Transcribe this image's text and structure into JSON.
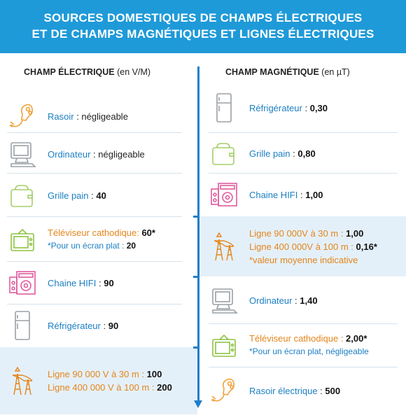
{
  "banner": {
    "line1": "SOURCES DOMESTIQUES DE CHAMPS ÉLECTRIQUES",
    "line2": "ET DE CHAMPS MAGNÉTIQUES ET LIGNES ÉLECTRIQUES"
  },
  "electric": {
    "title": "CHAMP ÉLECTRIQUE",
    "unit": "(en V/M)",
    "items": [
      {
        "icon": "razor-icon",
        "name": "Rasoir",
        "sep": " : ",
        "value": "négligeable",
        "value_bold": false
      },
      {
        "icon": "computer-icon",
        "name": "Ordinateur",
        "sep": " : ",
        "value": "négligeable",
        "value_bold": false
      },
      {
        "icon": "toaster-icon",
        "name": "Grille pain",
        "sep": " : ",
        "value": "40",
        "value_bold": true
      },
      {
        "icon": "tv-icon",
        "name": "Téléviseur cathodique",
        "sep": ": ",
        "value": "60*",
        "value_bold": true,
        "note_text": "*Pour un écran plat : ",
        "note_value": "20"
      },
      {
        "icon": "hifi-icon",
        "name": "Chaine HIFI",
        "sep": " : ",
        "value": "90",
        "value_bold": true
      },
      {
        "icon": "fridge-icon",
        "name": "Réfrigérateur",
        "sep": " : ",
        "value": "90",
        "value_bold": true
      }
    ],
    "lines": {
      "line1_name": "Ligne 90 000 V à 30 m : ",
      "line1_value": "100",
      "line2_name": "Ligne 400 000 V à 100 m : ",
      "line2_value": "200"
    }
  },
  "magnetic": {
    "title": "CHAMP MAGNÉTIQUE",
    "unit": "(en µT)",
    "items": [
      {
        "icon": "fridge-icon",
        "name": "Réfrigérateur",
        "sep": " : ",
        "value": "0,30"
      },
      {
        "icon": "toaster-icon",
        "name": "Grille pain",
        "sep": " : ",
        "value": "0,80"
      },
      {
        "icon": "hifi-icon",
        "name": "Chaine HIFI",
        "sep": " : ",
        "value": "1,00"
      }
    ],
    "lines": {
      "line1_name": "Ligne 90 000V à 30 m : ",
      "line1_value": "1,00",
      "line2_name": "Ligne 400 000V à 100 m : ",
      "line2_value": "0,16*",
      "note": "*valeur moyenne indicative"
    },
    "items2": [
      {
        "icon": "computer-icon",
        "name": "Ordinateur",
        "sep": " : ",
        "value": "1,40"
      },
      {
        "icon": "tv-icon",
        "name": "Téléviseur cathodique",
        "sep": " : ",
        "value": "2,00*",
        "note": "*Pour un écran plat, négligeable"
      },
      {
        "icon": "razor-icon",
        "name": "Rasoir électrique",
        "sep": " : ",
        "value": "500"
      }
    ]
  },
  "colors": {
    "banner": "#1f9ad8",
    "axis": "#1f7fc9",
    "label_blue": "#1c7fc4",
    "label_orange": "#e5851c",
    "highlight": "#e4f0f9",
    "razor": "#f0a23c",
    "computer": "#9aa0a6",
    "toaster": "#a6cd6a",
    "tv": "#8dc342",
    "hifi": "#e05a9e",
    "fridge": "#9aa0a6",
    "pylon": "#e5851c"
  }
}
